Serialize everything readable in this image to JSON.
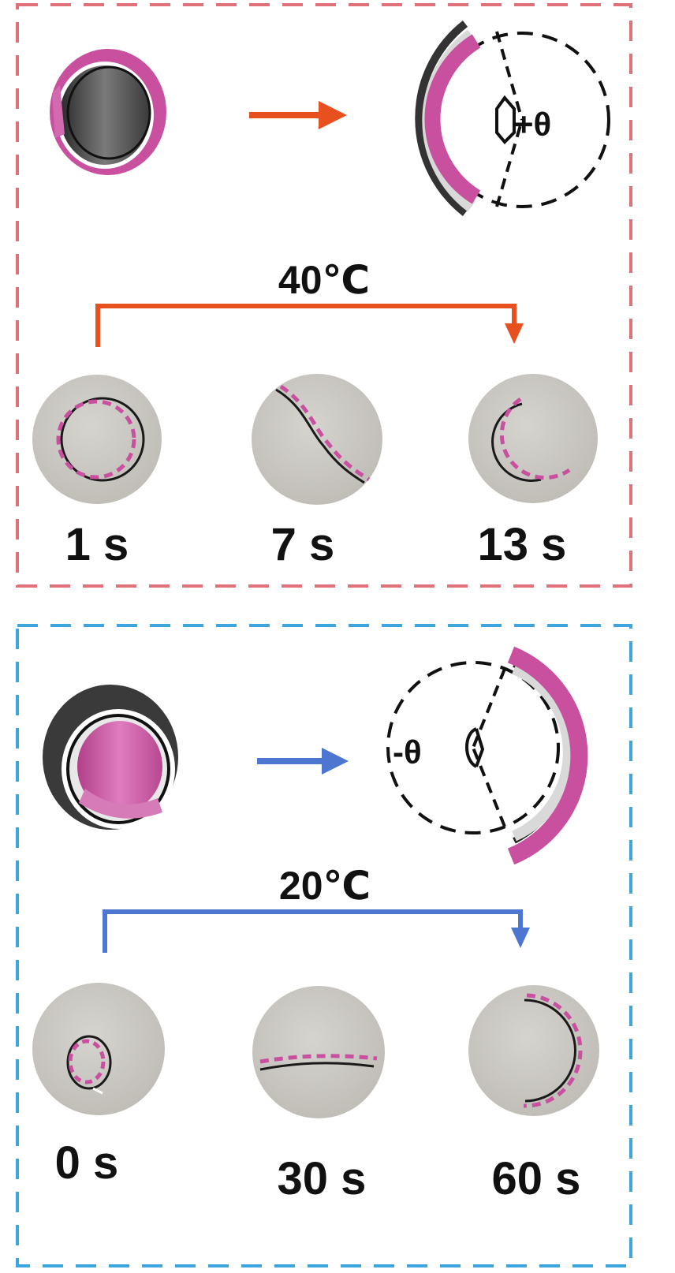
{
  "colors": {
    "heating_frame": "#e0707a",
    "cooling_frame": "#3ea6df",
    "heating_arrow": "#e8501f",
    "cooling_arrow": "#4c76d0",
    "magenta": "#c8509f",
    "dark_layer": "#3a3a3a",
    "light_layer": "#d9d9d9",
    "disk": "#c8c6c1",
    "dashed_outline": "#111111"
  },
  "heating": {
    "angle_label": "+θ",
    "temperature": "40℃",
    "photos": [
      {
        "time_label": "1 s",
        "shape": "ring"
      },
      {
        "time_label": "7 s",
        "shape": "s-curve"
      },
      {
        "time_label": "13 s",
        "shape": "c-curve"
      }
    ]
  },
  "cooling": {
    "angle_label": "-θ",
    "temperature": "20℃",
    "photos": [
      {
        "time_label": "0 s",
        "shape": "small-ring"
      },
      {
        "time_label": "30 s",
        "shape": "flat"
      },
      {
        "time_label": "60 s",
        "shape": "reverse-c-curve"
      }
    ]
  }
}
